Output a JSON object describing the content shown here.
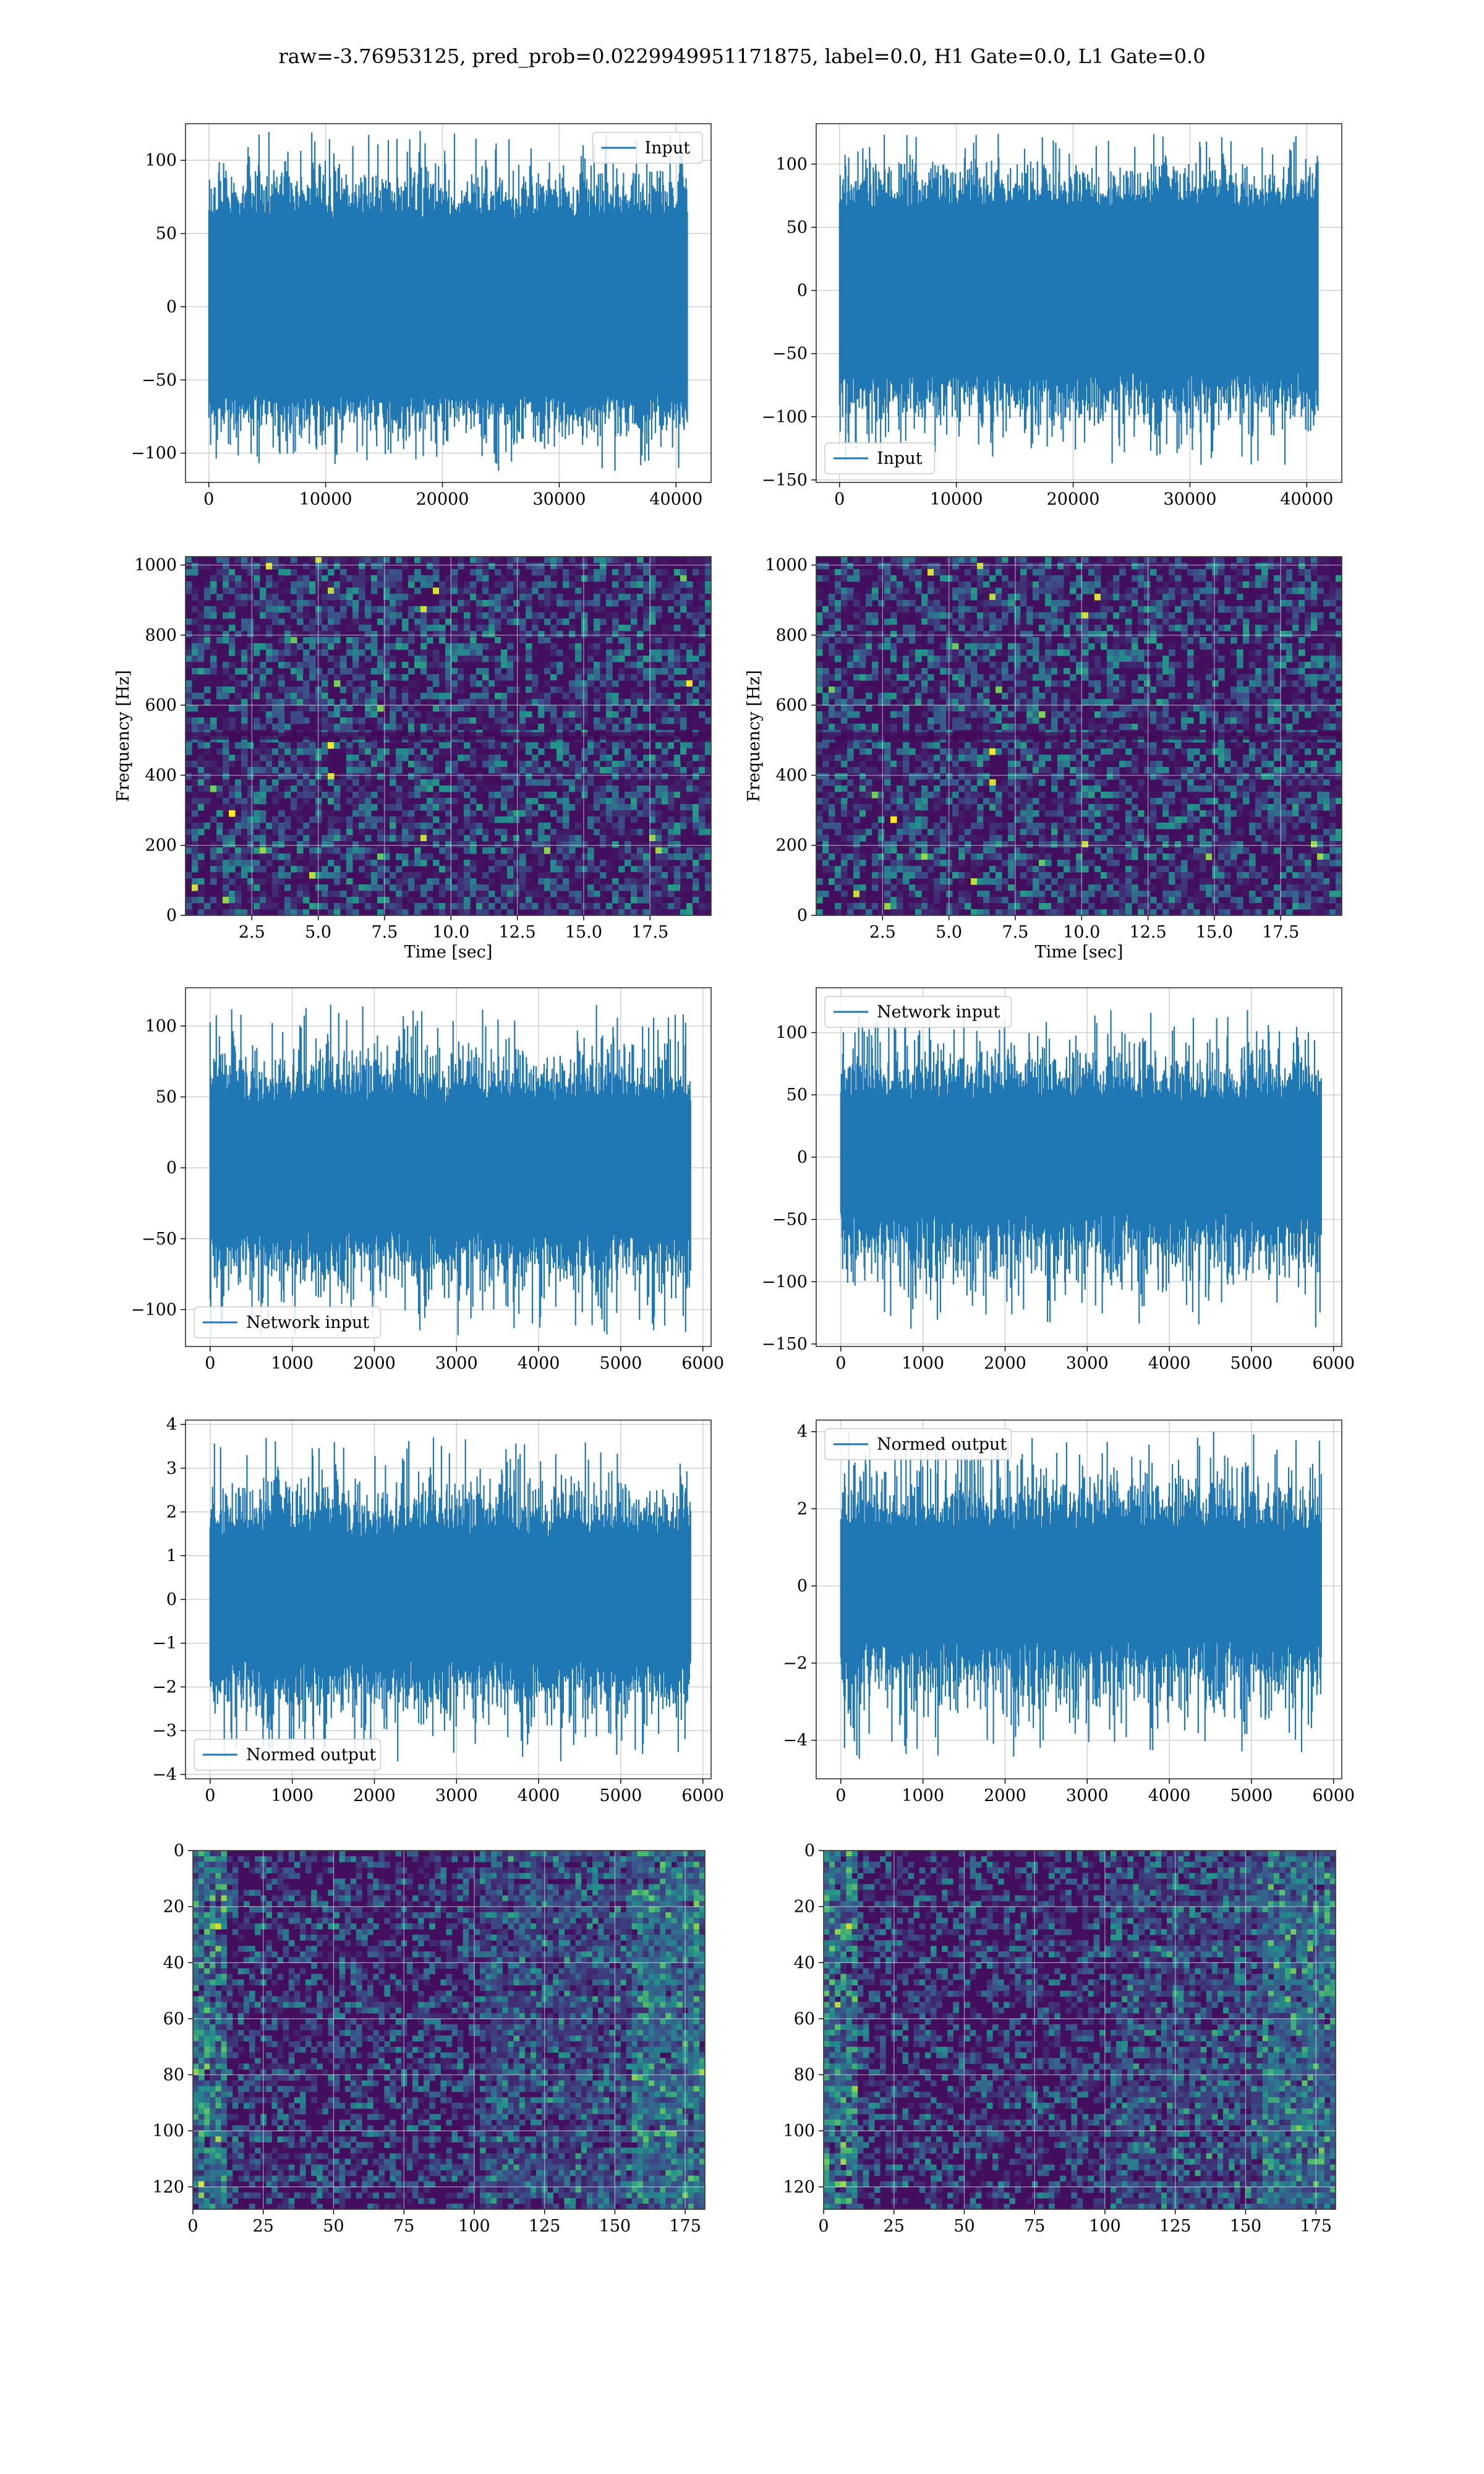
{
  "figure": {
    "title": "raw=-3.76953125, pred_prob=0.0229949951171875, label=0.0, H1 Gate=0.0, L1 Gate=0.0",
    "line_color": "#1f77b4"
  },
  "chart_data": [
    {
      "id": "h1-input",
      "type": "line",
      "legend": "Input",
      "legend_position": "upper right",
      "xlim": [
        -2000,
        43000
      ],
      "ylim": [
        -120,
        125
      ],
      "xticks": [
        0,
        10000,
        20000,
        30000,
        40000
      ],
      "yticks": [
        -100,
        -50,
        0,
        50,
        100
      ],
      "n_samples": 40960,
      "core_envelope": [
        -60,
        60
      ],
      "peak_envelope": [
        -112,
        120
      ],
      "grid": true
    },
    {
      "id": "l1-input",
      "type": "line",
      "legend": "Input",
      "legend_position": "lower left",
      "xlim": [
        -2000,
        43000
      ],
      "ylim": [
        -152,
        132
      ],
      "xticks": [
        0,
        10000,
        20000,
        30000,
        40000
      ],
      "yticks": [
        -150,
        -100,
        -50,
        0,
        50,
        100
      ],
      "n_samples": 40960,
      "core_envelope": [
        -65,
        65
      ],
      "peak_envelope": [
        -138,
        124
      ],
      "grid": true
    },
    {
      "id": "h1-spectrogram",
      "type": "heatmap",
      "colormap": "viridis",
      "xlim": [
        0,
        19.8
      ],
      "ylim": [
        0,
        1024
      ],
      "xticks": [
        2.5,
        5.0,
        7.5,
        10.0,
        12.5,
        15.0,
        17.5
      ],
      "yticks": [
        0,
        200,
        400,
        600,
        800,
        1000
      ],
      "xlabel": "Time [sec]",
      "ylabel": "Frequency [Hz]",
      "grid": true
    },
    {
      "id": "l1-spectrogram",
      "type": "heatmap",
      "colormap": "viridis",
      "xlim": [
        0,
        19.8
      ],
      "ylim": [
        0,
        1024
      ],
      "xticks": [
        2.5,
        5.0,
        7.5,
        10.0,
        12.5,
        15.0,
        17.5
      ],
      "yticks": [
        0,
        200,
        400,
        600,
        800,
        1000
      ],
      "xlabel": "Time [sec]",
      "ylabel": "Frequency [Hz]",
      "grid": true
    },
    {
      "id": "h1-network-input",
      "type": "line",
      "legend": "Network input",
      "legend_position": "lower left",
      "xlim": [
        -300,
        6100
      ],
      "ylim": [
        -126,
        127
      ],
      "xticks": [
        0,
        1000,
        2000,
        3000,
        4000,
        5000,
        6000
      ],
      "yticks": [
        -100,
        -50,
        0,
        50,
        100
      ],
      "n_samples": 5850,
      "core_envelope": [
        -45,
        45
      ],
      "peak_envelope": [
        -118,
        115
      ],
      "grid": true
    },
    {
      "id": "l1-network-input",
      "type": "line",
      "legend": "Network input",
      "legend_position": "upper left",
      "xlim": [
        -300,
        6100
      ],
      "ylim": [
        -152,
        136
      ],
      "xticks": [
        0,
        1000,
        2000,
        3000,
        4000,
        5000,
        6000
      ],
      "yticks": [
        -150,
        -100,
        -50,
        0,
        50,
        100
      ],
      "n_samples": 5850,
      "core_envelope": [
        -45,
        45
      ],
      "peak_envelope": [
        -140,
        118
      ],
      "grid": true
    },
    {
      "id": "h1-normed-output",
      "type": "line",
      "legend": "Normed output",
      "legend_position": "lower left",
      "xlim": [
        -300,
        6100
      ],
      "ylim": [
        -4.1,
        4.1
      ],
      "xticks": [
        0,
        1000,
        2000,
        3000,
        4000,
        5000,
        6000
      ],
      "yticks": [
        -4,
        -3,
        -2,
        -1,
        0,
        1,
        2,
        3,
        4
      ],
      "n_samples": 5850,
      "core_envelope": [
        -1.4,
        1.4
      ],
      "peak_envelope": [
        -3.7,
        3.7
      ],
      "grid": true
    },
    {
      "id": "l1-normed-output",
      "type": "line",
      "legend": "Normed output",
      "legend_position": "upper left",
      "xlim": [
        -300,
        6100
      ],
      "ylim": [
        -5.0,
        4.3
      ],
      "xticks": [
        0,
        1000,
        2000,
        3000,
        4000,
        5000,
        6000
      ],
      "yticks": [
        -4,
        -2,
        0,
        2,
        4
      ],
      "n_samples": 5850,
      "core_envelope": [
        -1.4,
        1.4
      ],
      "peak_envelope": [
        -4.5,
        4.0
      ],
      "grid": true
    },
    {
      "id": "h1-feature-map",
      "type": "heatmap",
      "colormap": "viridis",
      "xlim": [
        0,
        182
      ],
      "ylim": [
        128,
        0
      ],
      "xticks": [
        0,
        25,
        50,
        75,
        100,
        125,
        150,
        175
      ],
      "yticks": [
        0,
        20,
        40,
        60,
        80,
        100,
        120
      ],
      "grid": true
    },
    {
      "id": "l1-feature-map",
      "type": "heatmap",
      "colormap": "viridis",
      "xlim": [
        0,
        182
      ],
      "ylim": [
        128,
        0
      ],
      "xticks": [
        0,
        25,
        50,
        75,
        100,
        125,
        150,
        175
      ],
      "yticks": [
        0,
        20,
        40,
        60,
        80,
        100,
        120
      ],
      "grid": true
    }
  ]
}
